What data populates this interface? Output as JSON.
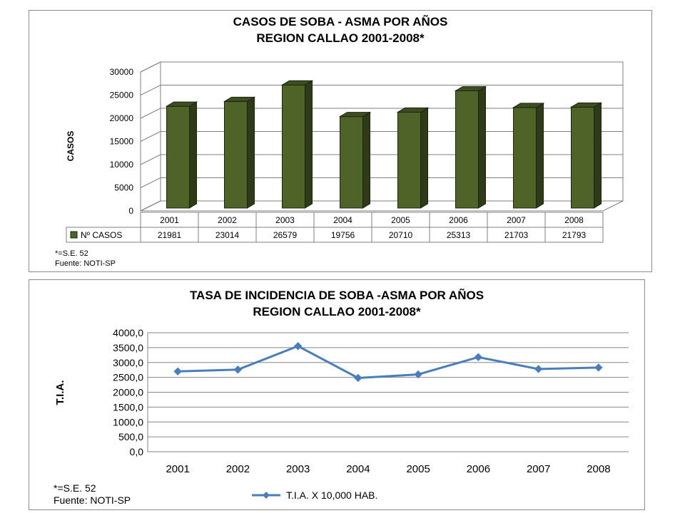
{
  "chart_data": [
    {
      "type": "bar",
      "title_line1": "CASOS DE SOBA - ASMA POR AÑOS",
      "title_line2": "REGION CALLAO 2001-2008*",
      "ylabel": "CASOS",
      "ylim": [
        0,
        30000
      ],
      "yticks": [
        "0",
        "5000",
        "10000",
        "15000",
        "20000",
        "25000",
        "30000"
      ],
      "categories": [
        "2001",
        "2002",
        "2003",
        "2004",
        "2005",
        "2006",
        "2007",
        "2008"
      ],
      "series": [
        {
          "name": "Nº CASOS",
          "values": [
            21981,
            23014,
            26579,
            19756,
            20710,
            25313,
            21703,
            21793
          ]
        }
      ],
      "data_table_labels": [
        "21981",
        "23014",
        "26579",
        "19756",
        "20710",
        "25313",
        "21703",
        "21793"
      ],
      "grid": true,
      "three_d": true,
      "bar_color": "#4f6228",
      "footnote": "*=S.E. 52",
      "source": "Fuente: NOTI-SP"
    },
    {
      "type": "line",
      "title_line1": "TASA DE INCIDENCIA DE SOBA -ASMA POR AÑOS",
      "title_line2": "REGION CALLAO 2001-2008*",
      "ylabel": "T.I.A.",
      "ylim": [
        0,
        4000
      ],
      "yticks": [
        "0,0",
        "500,0",
        "1000,0",
        "1500,0",
        "2000,0",
        "2500,0",
        "3000,0",
        "3500,0",
        "4000,0"
      ],
      "categories": [
        "2001",
        "2002",
        "2003",
        "2004",
        "2005",
        "2006",
        "2007",
        "2008"
      ],
      "series": [
        {
          "name": "T.I.A. X 10,000 HAB.",
          "values": [
            2700,
            2760,
            3550,
            2480,
            2600,
            3180,
            2780,
            2830
          ]
        }
      ],
      "grid": true,
      "legend": "bottom",
      "line_color": "#4a7ebb",
      "footnote": "*=S.E. 52",
      "source": "Fuente: NOTI-SP"
    }
  ]
}
